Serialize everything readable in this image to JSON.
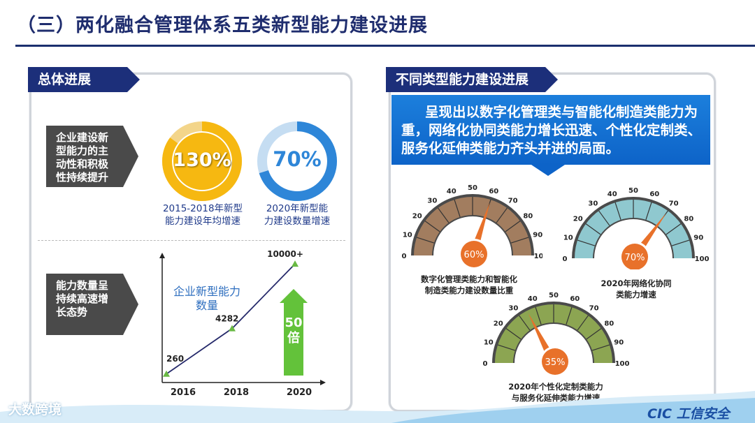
{
  "title": "（三）两化融合管理体系五类新型能力建设进展",
  "left": {
    "tag": "总体进展",
    "label_active": "企业建设新型能力的主动性和积极性持续提升",
    "ring1": {
      "value": "130%",
      "percent": 85,
      "caption1": "2015-2018年新型",
      "caption2": "能力建设年均增速",
      "color": "#f6b811"
    },
    "ring2": {
      "value": "70%",
      "percent": 70,
      "caption1": "2020年新型能",
      "caption2": "力建设数量增速",
      "color": "#2e86d8"
    },
    "label_scale": "能力数量呈持续高速增长态势",
    "chart_title1": "企业新型能力",
    "chart_title2": "数量",
    "multiplier1": "50",
    "multiplier2": "倍"
  },
  "right": {
    "tag": "不同类型能力建设进展",
    "banner": "呈现出以数字化管理类与智能化制造类能力为重，网络化协同类能力增长迅速、个性化定制类、服务化延伸类能力齐头并进的局面。",
    "gauges": [
      {
        "value": "60%",
        "level": 60,
        "color": "#a27d5f",
        "caption1": "数字化管理类能力和智能化",
        "caption2": "制造类能力建设数量比重"
      },
      {
        "value": "70%",
        "level": 70,
        "color": "#8fc8cf",
        "caption1": "2020年网络化协同",
        "caption2": "类能力增速"
      },
      {
        "value": "35%",
        "level": 35,
        "color": "#8ca552",
        "caption1": "2020年个性化定制类能力",
        "caption2": "与服务化延伸类能力增速"
      }
    ],
    "ticks": [
      "0",
      "10",
      "20",
      "30",
      "40",
      "50",
      "60",
      "70",
      "80",
      "90",
      "100"
    ]
  },
  "chart_data": {
    "type": "line",
    "title": "企业新型能力数量",
    "categories": [
      "2016",
      "2018",
      "2020"
    ],
    "values": [
      260,
      4282,
      10000
    ],
    "labels": [
      "260",
      "4282",
      "10000+"
    ],
    "xlabel": "",
    "ylabel": "",
    "ylim": [
      0,
      10500
    ]
  },
  "footer": {
    "left_logo": "大数跨境",
    "right_logo": "CIC 工信安全"
  }
}
